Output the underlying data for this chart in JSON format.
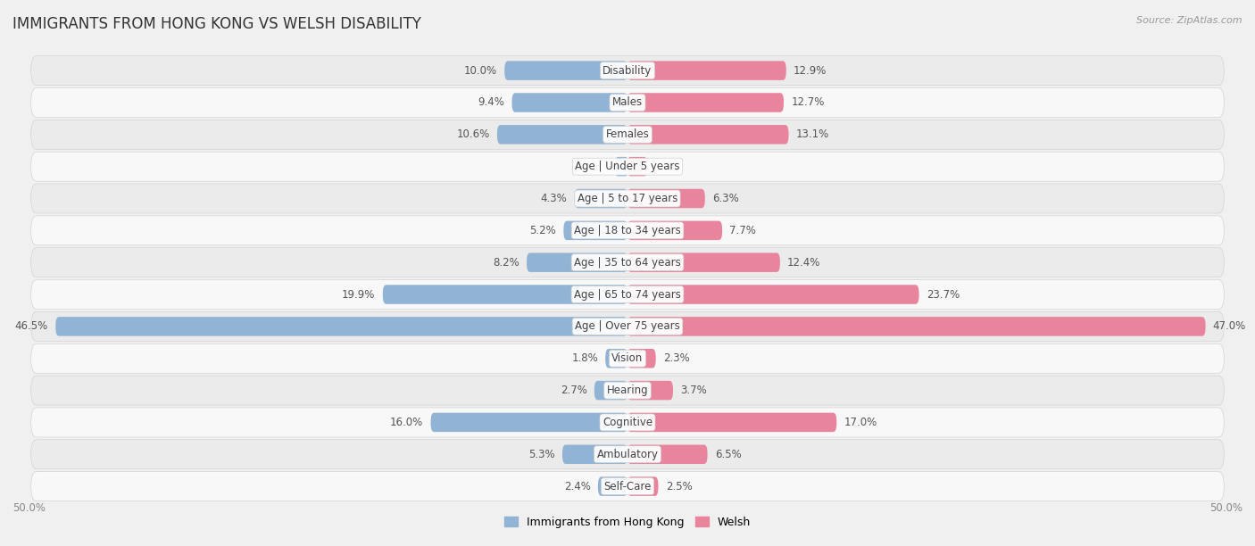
{
  "title": "IMMIGRANTS FROM HONG KONG VS WELSH DISABILITY",
  "source": "Source: ZipAtlas.com",
  "categories": [
    "Disability",
    "Males",
    "Females",
    "Age | Under 5 years",
    "Age | 5 to 17 years",
    "Age | 18 to 34 years",
    "Age | 35 to 64 years",
    "Age | 65 to 74 years",
    "Age | Over 75 years",
    "Vision",
    "Hearing",
    "Cognitive",
    "Ambulatory",
    "Self-Care"
  ],
  "left_values": [
    10.0,
    9.4,
    10.6,
    0.95,
    4.3,
    5.2,
    8.2,
    19.9,
    46.5,
    1.8,
    2.7,
    16.0,
    5.3,
    2.4
  ],
  "right_values": [
    12.9,
    12.7,
    13.1,
    1.6,
    6.3,
    7.7,
    12.4,
    23.7,
    47.0,
    2.3,
    3.7,
    17.0,
    6.5,
    2.5
  ],
  "left_color": "#92b4d4",
  "right_color": "#e8849c",
  "left_label": "Immigrants from Hong Kong",
  "right_label": "Welsh",
  "background_color": "#f0f0f0",
  "row_bg_light": "#f5f5f5",
  "row_bg_dark": "#e5e5e5",
  "max_value": 50.0,
  "title_fontsize": 12,
  "label_fontsize": 8.5,
  "value_fontsize": 8.5,
  "axis_fontsize": 8.5
}
